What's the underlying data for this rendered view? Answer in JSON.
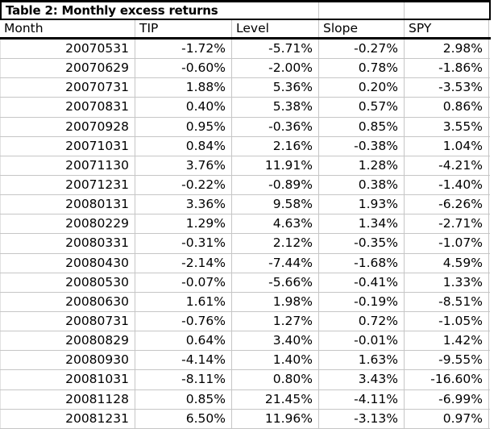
{
  "title": "Table 2: Monthly excess returns",
  "columns": [
    "Month",
    "TIP",
    "Level",
    "Slope",
    "SPY"
  ],
  "rows": [
    [
      "20070531",
      "-1.72%",
      "-5.71%",
      "-0.27%",
      "2.98%"
    ],
    [
      "20070629",
      "-0.60%",
      "-2.00%",
      "0.78%",
      "-1.86%"
    ],
    [
      "20070731",
      "1.88%",
      "5.36%",
      "0.20%",
      "-3.53%"
    ],
    [
      "20070831",
      "0.40%",
      "5.38%",
      "0.57%",
      "0.86%"
    ],
    [
      "20070928",
      "0.95%",
      "-0.36%",
      "0.85%",
      "3.55%"
    ],
    [
      "20071031",
      "0.84%",
      "2.16%",
      "-0.38%",
      "1.04%"
    ],
    [
      "20071130",
      "3.76%",
      "11.91%",
      "1.28%",
      "-4.21%"
    ],
    [
      "20071231",
      "-0.22%",
      "-0.89%",
      "0.38%",
      "-1.40%"
    ],
    [
      "20080131",
      "3.36%",
      "9.58%",
      "1.93%",
      "-6.26%"
    ],
    [
      "20080229",
      "1.29%",
      "4.63%",
      "1.34%",
      "-2.71%"
    ],
    [
      "20080331",
      "-0.31%",
      "2.12%",
      "-0.35%",
      "-1.07%"
    ],
    [
      "20080430",
      "-2.14%",
      "-7.44%",
      "-1.68%",
      "4.59%"
    ],
    [
      "20080530",
      "-0.07%",
      "-5.66%",
      "-0.41%",
      "1.33%"
    ],
    [
      "20080630",
      "1.61%",
      "1.98%",
      "-0.19%",
      "-8.51%"
    ],
    [
      "20080731",
      "-0.76%",
      "1.27%",
      "0.72%",
      "-1.05%"
    ],
    [
      "20080829",
      "0.64%",
      "3.40%",
      "-0.01%",
      "1.42%"
    ],
    [
      "20080930",
      "-4.14%",
      "1.40%",
      "1.63%",
      "-9.55%"
    ],
    [
      "20081031",
      "-8.11%",
      "0.80%",
      "3.43%",
      "-16.60%"
    ],
    [
      "20081128",
      "0.85%",
      "21.45%",
      "-4.11%",
      "-6.99%"
    ],
    [
      "20081231",
      "6.50%",
      "11.96%",
      "-3.13%",
      "0.97%"
    ]
  ],
  "colors": {
    "background": "#ffffff",
    "text": "#000000",
    "heavy_border": "#000000",
    "gridline": "#c6c6c6"
  }
}
